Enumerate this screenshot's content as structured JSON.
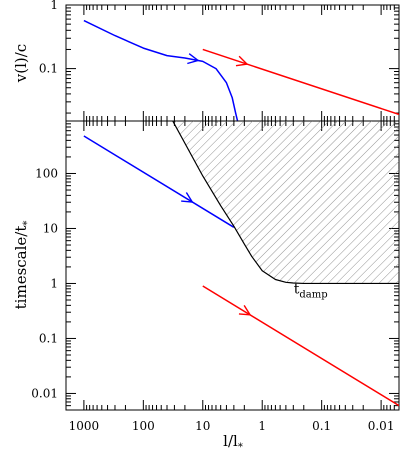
{
  "chart_data": [
    {
      "type": "line",
      "panel": "top",
      "ylabel": {
        "main": "v(l)/c",
        "sub": ""
      },
      "xscale": "log-reversed",
      "yscale": "log",
      "xlim": [
        2000,
        0.005
      ],
      "ylim": [
        0.015,
        1
      ],
      "ytick_labels": [
        {
          "value": 1,
          "label": "1"
        },
        {
          "value": 0.1,
          "label": "0.1"
        }
      ],
      "series": [
        {
          "color": "#0000ff",
          "x": [
            1000,
            300,
            100,
            40,
            20,
            10,
            6,
            4,
            3.2,
            2.8,
            2.6
          ],
          "y": [
            0.57,
            0.33,
            0.21,
            0.16,
            0.147,
            0.13,
            0.1,
            0.06,
            0.035,
            0.02,
            0.015
          ],
          "arrow_at": 12
        },
        {
          "color": "#ff0000",
          "x": [
            10,
            0.005
          ],
          "y": [
            0.2,
            0.019
          ],
          "arrow_at": 1.8
        }
      ]
    },
    {
      "type": "line",
      "panel": "bottom",
      "xlabel": {
        "main": "l/l",
        "sub": "*"
      },
      "ylabel": {
        "main": "timescale/t",
        "sub": "*"
      },
      "xscale": "log-reversed",
      "yscale": "log",
      "xlim": [
        2000,
        0.005
      ],
      "ylim": [
        0.005,
        900
      ],
      "xtick_labels": [
        {
          "value": 1000,
          "label": "1000"
        },
        {
          "value": 100,
          "label": "100"
        },
        {
          "value": 10,
          "label": "10"
        },
        {
          "value": 1,
          "label": "1"
        },
        {
          "value": 0.1,
          "label": "0.1"
        },
        {
          "value": 0.01,
          "label": "0.01"
        }
      ],
      "ytick_labels": [
        {
          "value": 100,
          "label": "100"
        },
        {
          "value": 10,
          "label": "10"
        },
        {
          "value": 1,
          "label": "1"
        },
        {
          "value": 0.1,
          "label": "0.1"
        },
        {
          "value": 0.01,
          "label": "0.01"
        }
      ],
      "series": [
        {
          "color": "#0000ff",
          "x": [
            1000,
            3
          ],
          "y": [
            480,
            10.5
          ],
          "arrow_at": 15
        },
        {
          "color": "#ff0000",
          "x": [
            10,
            0.005
          ],
          "y": [
            0.9,
            0.006
          ],
          "arrow_at": 1.6
        },
        {
          "color": "#000000",
          "role": "damping-timescale",
          "x": [
            32,
            10,
            5,
            3,
            2,
            1.5,
            1,
            0.6,
            0.4,
            0.3,
            0.2,
            0.1,
            0.05,
            0.02,
            0.005
          ],
          "y": [
            900,
            90,
            26,
            11,
            5.2,
            3.1,
            1.7,
            1.18,
            1.05,
            1.02,
            1.0,
            1.0,
            1.0,
            1.0,
            1.0
          ]
        }
      ],
      "shaded_region": "above damping-timescale curve",
      "annotations": [
        {
          "main": "t",
          "sub": "damp",
          "x": 0.2,
          "y": 0.65
        }
      ]
    }
  ]
}
